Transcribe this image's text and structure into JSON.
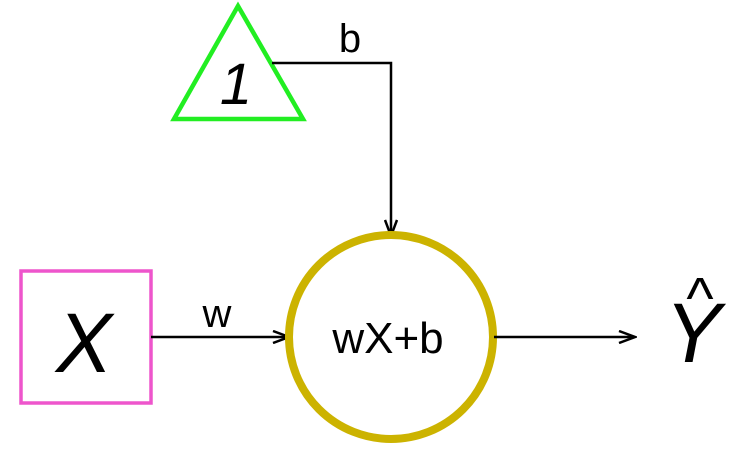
{
  "diagram": {
    "bias_node": {
      "label": "1",
      "color": "#22ee22"
    },
    "input_node": {
      "label": "X",
      "color": "#ee55cc"
    },
    "sum_node": {
      "label": "wX+b",
      "color": "#ccb300"
    },
    "output_node": {
      "label": "Y",
      "hat": "^"
    },
    "edges": {
      "bias_label": "b",
      "weight_label": "w"
    },
    "edge_color": "#000000"
  }
}
